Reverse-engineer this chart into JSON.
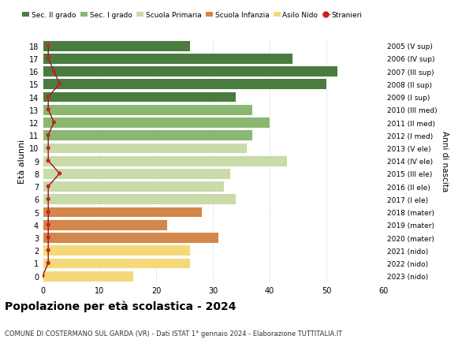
{
  "ages": [
    0,
    1,
    2,
    3,
    4,
    5,
    6,
    7,
    8,
    9,
    10,
    11,
    12,
    13,
    14,
    15,
    16,
    17,
    18
  ],
  "bar_values": [
    16,
    26,
    26,
    31,
    22,
    28,
    34,
    32,
    33,
    43,
    36,
    37,
    40,
    37,
    34,
    50,
    52,
    44,
    26
  ],
  "bar_colors": [
    "#f5d87a",
    "#f5d87a",
    "#f5d87a",
    "#d4874a",
    "#d4874a",
    "#d4874a",
    "#c8dba8",
    "#c8dba8",
    "#c8dba8",
    "#c8dba8",
    "#c8dba8",
    "#8ab870",
    "#8ab870",
    "#8ab870",
    "#4a7c3f",
    "#4a7c3f",
    "#4a7c3f",
    "#4a7c3f",
    "#4a7c3f"
  ],
  "stranieri_values": [
    0,
    1,
    1,
    1,
    1,
    1,
    1,
    1,
    3,
    1,
    1,
    1,
    2,
    1,
    1,
    3,
    2,
    1,
    1
  ],
  "right_labels": [
    "2023 (nido)",
    "2022 (nido)",
    "2021 (nido)",
    "2020 (mater)",
    "2019 (mater)",
    "2018 (mater)",
    "2017 (I ele)",
    "2016 (II ele)",
    "2015 (III ele)",
    "2014 (IV ele)",
    "2013 (V ele)",
    "2012 (I med)",
    "2011 (II med)",
    "2010 (III med)",
    "2009 (I sup)",
    "2008 (II sup)",
    "2007 (III sup)",
    "2006 (IV sup)",
    "2005 (V sup)"
  ],
  "legend_labels": [
    "Sec. II grado",
    "Sec. I grado",
    "Scuola Primaria",
    "Scuola Infanzia",
    "Asilo Nido",
    "Stranieri"
  ],
  "legend_colors": [
    "#4a7c3f",
    "#8ab870",
    "#c8dba8",
    "#d4874a",
    "#f5d87a",
    "#cc2222"
  ],
  "title": "Popolazione per età scolastica - 2024",
  "subtitle": "COMUNE DI COSTERMANO SUL GARDA (VR) - Dati ISTAT 1° gennaio 2024 - Elaborazione TUTTITALIA.IT",
  "ylabel_left": "Età alunni",
  "ylabel_right": "Anni di nascita",
  "xlim": [
    0,
    60
  ],
  "background_color": "#ffffff",
  "grid_color": "#cccccc"
}
